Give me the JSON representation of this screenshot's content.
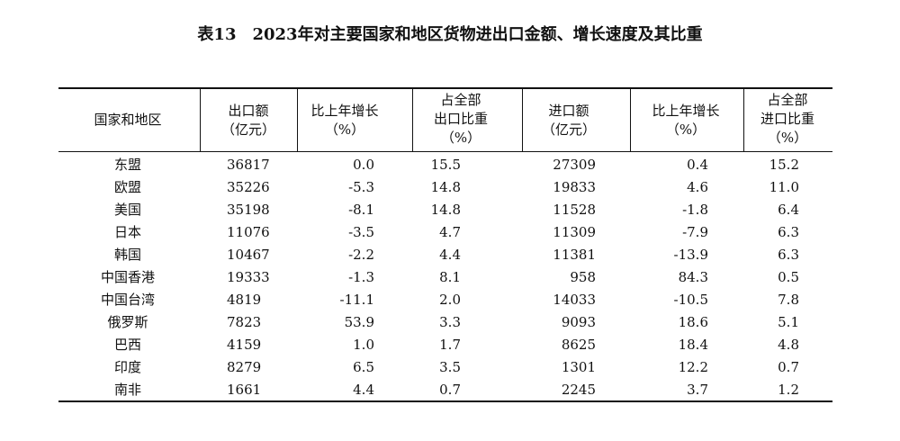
{
  "header": {
    "title": "表13　2023年对主要国家和地区货物进出口金额、增长速度及其比重"
  },
  "table": {
    "columns": [
      [
        "国家和地区"
      ],
      [
        "出口额",
        "（亿元）"
      ],
      [
        "比上年增长",
        "（%）"
      ],
      [
        "占全部",
        "出口比重",
        "（%）"
      ],
      [
        "进口额",
        "（亿元）"
      ],
      [
        "比上年增长",
        "（%）"
      ],
      [
        "占全部",
        "进口比重",
        "（%）"
      ]
    ],
    "rows": [
      [
        "东盟",
        "36817",
        "0.0",
        "15.5",
        "27309",
        "0.4",
        "15.2"
      ],
      [
        "欧盟",
        "35226",
        "-5.3",
        "14.8",
        "19833",
        "4.6",
        "11.0"
      ],
      [
        "美国",
        "35198",
        "-8.1",
        "14.8",
        "11528",
        "-1.8",
        "6.4"
      ],
      [
        "日本",
        "11076",
        "-3.5",
        "4.7",
        "11309",
        "-7.9",
        "6.3"
      ],
      [
        "韩国",
        "10467",
        "-2.2",
        "4.4",
        "11381",
        "-13.9",
        "6.3"
      ],
      [
        "中国香港",
        "19333",
        "-1.3",
        "8.1",
        "958",
        "84.3",
        "0.5"
      ],
      [
        "中国台湾",
        "4819",
        "-11.1",
        "2.0",
        "14033",
        "-10.5",
        "7.8"
      ],
      [
        "俄罗斯",
        "7823",
        "53.9",
        "3.3",
        "9093",
        "18.6",
        "5.1"
      ],
      [
        "巴西",
        "4159",
        "1.0",
        "1.7",
        "8625",
        "18.4",
        "4.8"
      ],
      [
        "印度",
        "8279",
        "6.5",
        "3.5",
        "1301",
        "12.2",
        "0.7"
      ],
      [
        "南非",
        "1661",
        "4.4",
        "0.7",
        "2245",
        "3.7",
        "1.2"
      ]
    ]
  }
}
